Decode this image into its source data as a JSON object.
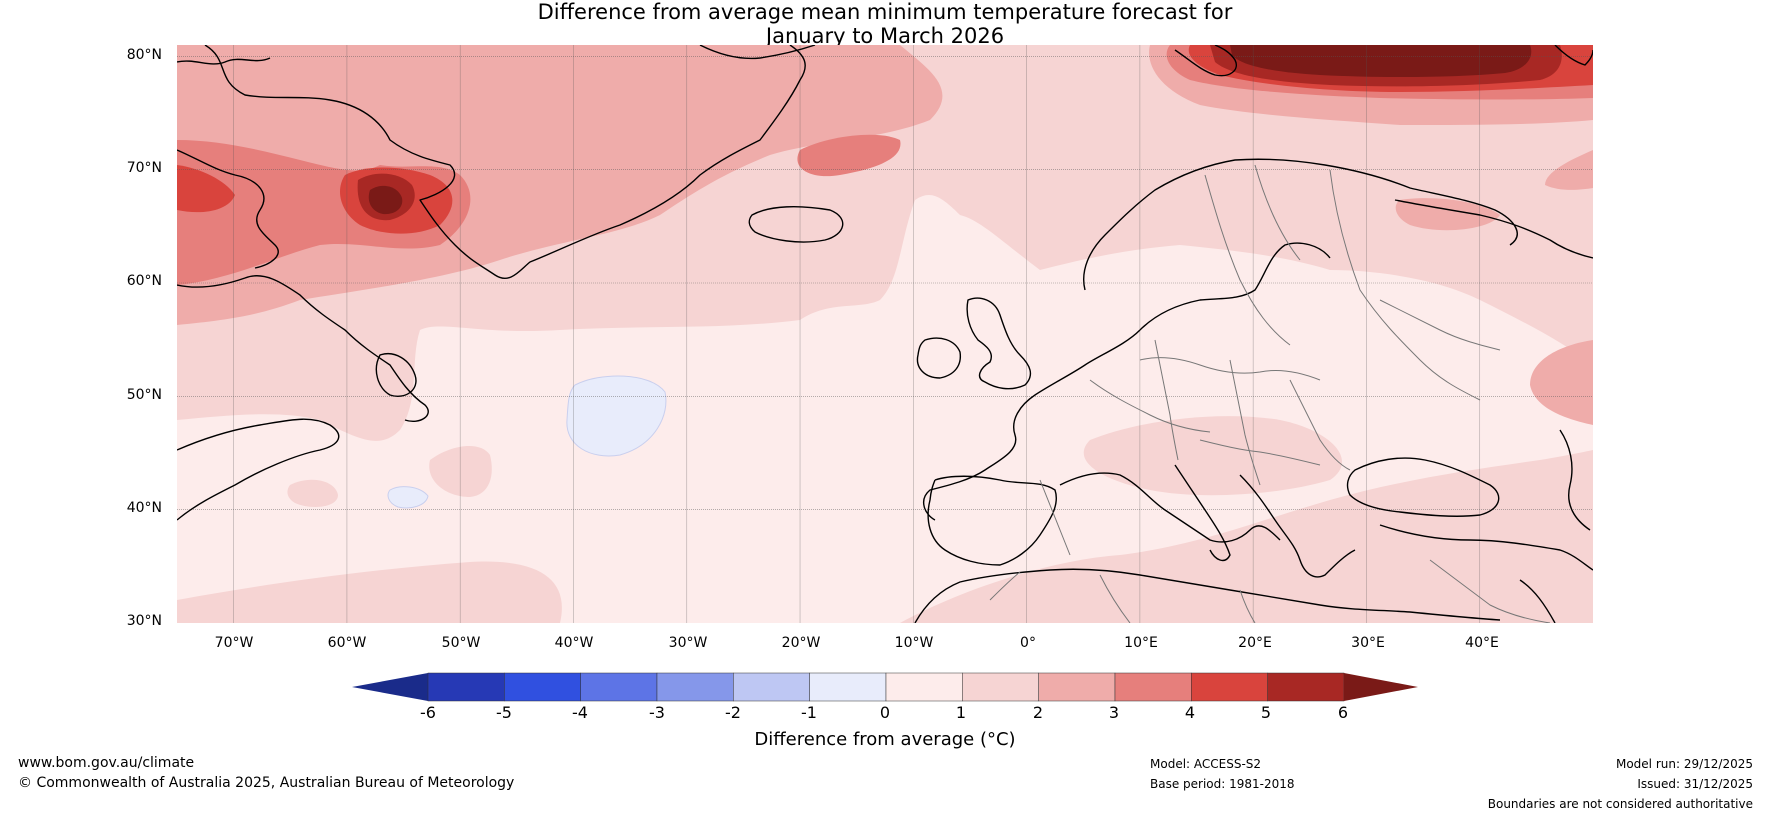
{
  "title": {
    "line1": "Difference from average mean minimum temperature forecast for",
    "line2": "January to March 2026"
  },
  "map": {
    "lat_ticks": [
      "80°N",
      "70°N",
      "60°N",
      "50°N",
      "40°N",
      "30°N"
    ],
    "lon_ticks": [
      "70°W",
      "60°W",
      "50°W",
      "40°W",
      "30°W",
      "20°W",
      "10°W",
      "0°",
      "10°E",
      "20°E",
      "30°E",
      "40°E"
    ],
    "lat_range": [
      30,
      81
    ],
    "lon_range": [
      -75,
      50
    ]
  },
  "colorbar": {
    "ticks": [
      "-6",
      "-5",
      "-4",
      "-3",
      "-2",
      "-1",
      "0",
      "1",
      "2",
      "3",
      "4",
      "5",
      "6"
    ],
    "colors": [
      "#1a2b8a",
      "#2639b5",
      "#3050e0",
      "#5d74e6",
      "#8597ea",
      "#bec7f3",
      "#e8ecfb",
      "#fdeceb",
      "#f6d4d3",
      "#efacaa",
      "#e67f7c",
      "#d9443d",
      "#a82824",
      "#7a1a17"
    ],
    "label": "Difference from average (°C)"
  },
  "footer": {
    "website": "www.bom.gov.au/climate",
    "copyright": "© Commonwealth of Australia 2025, Australian Bureau of Meteorology",
    "model": "Model: ACCESS-S2",
    "base_period": "Base period: 1981-2018",
    "model_run": "Model run: 29/12/2025",
    "issued": "Issued: 31/12/2025",
    "disclaimer": "Boundaries are not considered authoritative"
  }
}
